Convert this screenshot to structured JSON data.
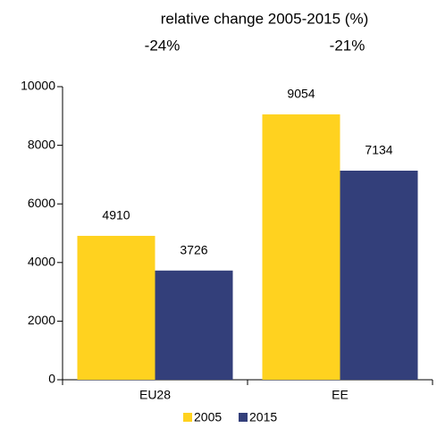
{
  "chart_data": {
    "type": "bar",
    "title": "relative change 2005-2015 (%)",
    "annotations": [
      "-24%",
      "-21%"
    ],
    "categories": [
      "EU28",
      "EE"
    ],
    "series": [
      {
        "name": "2005",
        "color": "#ffd21f",
        "values": [
          4910,
          9054
        ]
      },
      {
        "name": "2015",
        "color": "#333f7a",
        "values": [
          3726,
          7134
        ]
      }
    ],
    "ylim": [
      0,
      10000
    ],
    "yticks": [
      0,
      2000,
      4000,
      6000,
      8000,
      10000
    ],
    "grid": false,
    "legend": "bottom"
  }
}
